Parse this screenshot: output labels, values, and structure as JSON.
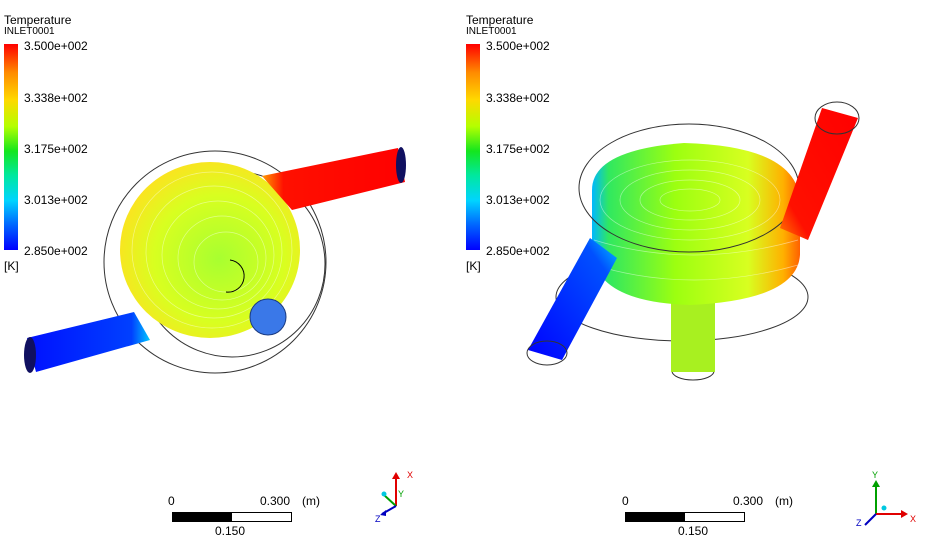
{
  "panels": [
    {
      "legend": {
        "title": "Temperature",
        "location": "INLET0001",
        "ticks": [
          "3.500e+002",
          "3.338e+002",
          "3.175e+002",
          "3.013e+002",
          "2.850e+002"
        ],
        "unit": "[K]"
      },
      "view": "top",
      "scale": {
        "start": "0",
        "end": "0.300",
        "unit": "(m)",
        "mid": "0.150"
      },
      "axes": {
        "a": "X",
        "b": "Y",
        "c": "Z"
      }
    },
    {
      "legend": {
        "title": "Temperature",
        "location": "INLET0001",
        "ticks": [
          "3.500e+002",
          "3.338e+002",
          "3.175e+002",
          "3.013e+002",
          "2.850e+002"
        ],
        "unit": "[K]"
      },
      "view": "isometric",
      "scale": {
        "start": "0",
        "end": "0.300",
        "unit": "(m)",
        "mid": "0.150"
      },
      "axes": {
        "a": "Y",
        "b": "X",
        "c": "Z"
      }
    }
  ],
  "colors": {
    "hot": "#ff0000",
    "cold": "#0000ff",
    "mid": "#8cff00",
    "axis_x": "#e00000",
    "axis_y": "#00a000",
    "axis_z": "#0000c0"
  }
}
